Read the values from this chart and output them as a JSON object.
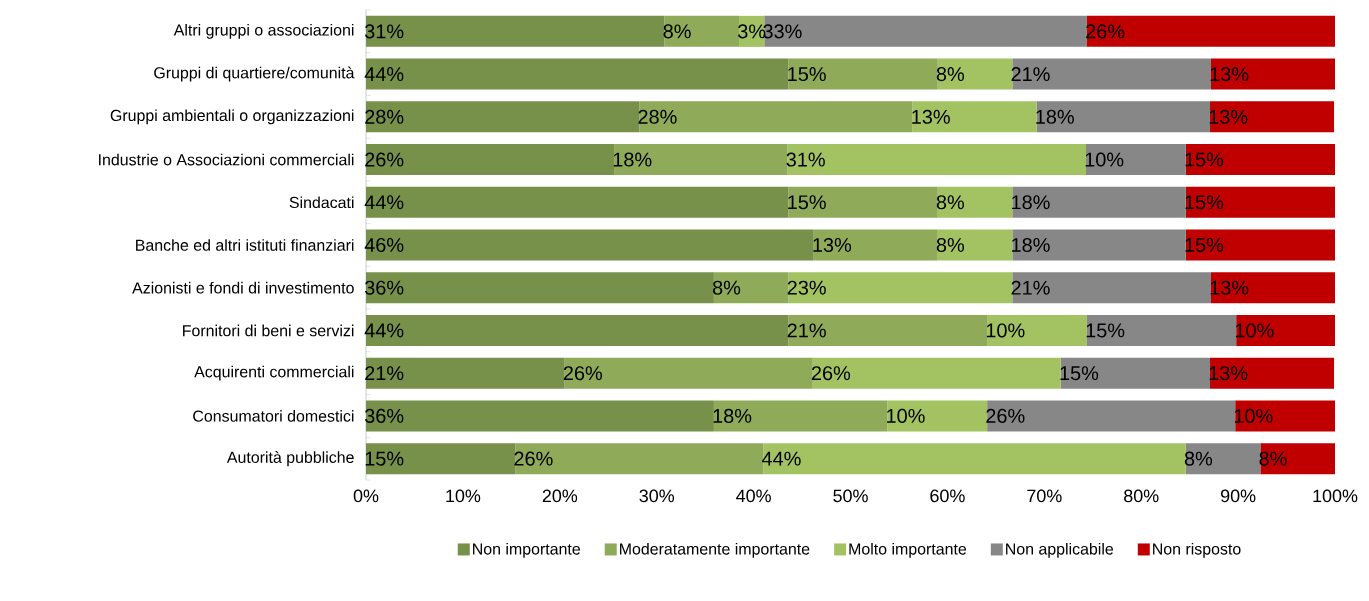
{
  "chart_data": {
    "type": "bar",
    "orientation": "horizontal",
    "stacked": true,
    "categories": [
      "Altri gruppi o associazioni",
      "Gruppi di quartiere/comunità",
      "Gruppi ambientali o organizzazioni",
      "Industrie o Associazioni commerciali",
      "Sindacati",
      "Banche ed altri istituti finanziari",
      "Azionisti e fondi di investimento",
      "Fornitori di beni e servizi",
      "Acquirenti commerciali",
      "Consumatori domestici",
      "Autorità pubbliche"
    ],
    "series": [
      {
        "name": "Non importante",
        "color": "#77904a",
        "values": [
          30.8,
          43.6,
          28.2,
          25.6,
          43.6,
          46.2,
          35.9,
          43.6,
          20.5,
          35.9,
          15.4
        ],
        "value_labels": [
          "31%",
          "44%",
          "28%",
          "26%",
          "44%",
          "46%",
          "36%",
          "44%",
          "21%",
          "36%",
          "15%"
        ]
      },
      {
        "name": "Moderatamente importante",
        "color": "#8faa58",
        "values": [
          7.7,
          15.4,
          28.2,
          17.9,
          15.4,
          12.8,
          7.7,
          20.5,
          25.6,
          17.9,
          25.6
        ],
        "value_labels": [
          "8%",
          "15%",
          "28%",
          "18%",
          "15%",
          "13%",
          "8%",
          "21%",
          "26%",
          "18%",
          "26%"
        ]
      },
      {
        "name": "Molto importante",
        "color": "#a3c261",
        "values": [
          2.6,
          7.7,
          12.8,
          30.8,
          7.7,
          7.7,
          23.1,
          10.3,
          25.6,
          10.3,
          43.6
        ],
        "value_labels": [
          "3%",
          "8%",
          "13%",
          "31%",
          "8%",
          "8%",
          "23%",
          "10%",
          "26%",
          "10%",
          "44%"
        ]
      },
      {
        "name": "Non applicabile",
        "color": "#878787",
        "values": [
          33.3,
          20.5,
          17.9,
          10.3,
          17.9,
          17.9,
          20.5,
          15.4,
          15.4,
          25.6,
          7.7
        ],
        "value_labels": [
          "33%",
          "21%",
          "18%",
          "10%",
          "18%",
          "18%",
          "21%",
          "15%",
          "15%",
          "26%",
          "8%"
        ]
      },
      {
        "name": "Non risposto",
        "color": "#c00000",
        "values": [
          25.6,
          12.8,
          12.8,
          15.4,
          15.4,
          15.4,
          12.8,
          10.2,
          12.8,
          10.3,
          7.7
        ],
        "value_labels": [
          "26%",
          "13%",
          "13%",
          "15%",
          "15%",
          "15%",
          "13%",
          "10%",
          "13%",
          "10%",
          "8%"
        ]
      }
    ],
    "xlim": [
      0,
      100
    ],
    "xticks": [
      {
        "value": 0,
        "label": "0%"
      },
      {
        "value": 10,
        "label": "10%"
      },
      {
        "value": 20,
        "label": "20%"
      },
      {
        "value": 30,
        "label": "30%"
      },
      {
        "value": 40,
        "label": "40%"
      },
      {
        "value": 50,
        "label": "50%"
      },
      {
        "value": 60,
        "label": "60%"
      },
      {
        "value": 70,
        "label": "70%"
      },
      {
        "value": 80,
        "label": "80%"
      },
      {
        "value": 90,
        "label": "90%"
      },
      {
        "value": 100,
        "label": "100%"
      }
    ],
    "grid": false,
    "legend": "bottom"
  }
}
